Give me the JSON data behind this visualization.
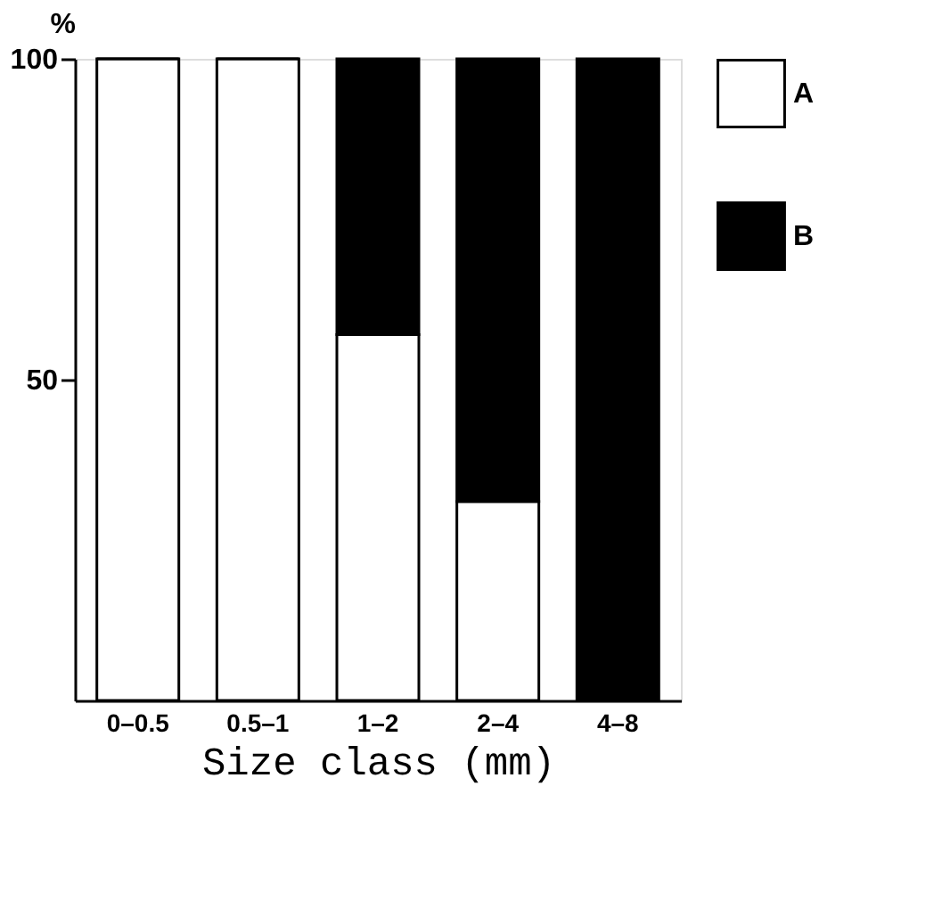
{
  "chart_data": {
    "type": "bar",
    "stacked": true,
    "ylabel": "%",
    "xlabel": "Size class (mm)",
    "categories": [
      "0–0.5",
      "0.5–1",
      "1–2",
      "2–4",
      "4–8"
    ],
    "series": [
      {
        "name": "A",
        "color": "#ffffff",
        "values": [
          100,
          100,
          57,
          31,
          0
        ]
      },
      {
        "name": "B",
        "color": "#000000",
        "values": [
          0,
          0,
          43,
          69,
          100
        ]
      }
    ],
    "ylim": [
      0,
      100
    ],
    "yticks": [
      50,
      100
    ],
    "grid": false,
    "legend": "right"
  }
}
